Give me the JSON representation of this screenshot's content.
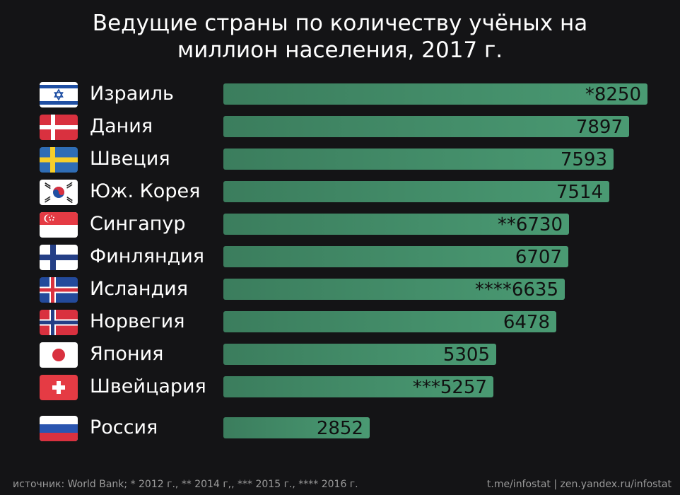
{
  "title_lines": [
    "Ведущие страны по количеству учёных на",
    "миллион населения, 2017 г."
  ],
  "chart_data": {
    "type": "bar",
    "orientation": "horizontal",
    "title": "Ведущие страны по количеству учёных на миллион населения, 2017 г.",
    "categories": [
      "Израиль",
      "Дания",
      "Швеция",
      "Юж. Корея",
      "Сингапур",
      "Финляндия",
      "Исландия",
      "Норвегия",
      "Япония",
      "Швейцария",
      "Россия"
    ],
    "values": [
      8250,
      7897,
      7593,
      7514,
      6730,
      6707,
      6635,
      6478,
      5305,
      5257,
      2852
    ],
    "value_labels": [
      "*8250",
      "7897",
      "7593",
      "7514",
      "**6730",
      "6707",
      "****6635",
      "6478",
      "5305",
      "***5257",
      "2852"
    ],
    "flags": [
      "israel-flag",
      "denmark-flag",
      "sweden-flag",
      "south-korea-flag",
      "singapore-flag",
      "finland-flag",
      "iceland-flag",
      "norway-flag",
      "japan-flag",
      "switzerland-flag",
      "russia-flag"
    ],
    "xlim": [
      0,
      8250
    ],
    "grid": false,
    "bar_color": "#4a9a73"
  },
  "footer": {
    "source": "источник: World Bank; * 2012 г., ** 2014 г,, *** 2015 г., **** 2016 г.",
    "links": "t.me/infostat | zen.yandex.ru/infostat"
  }
}
